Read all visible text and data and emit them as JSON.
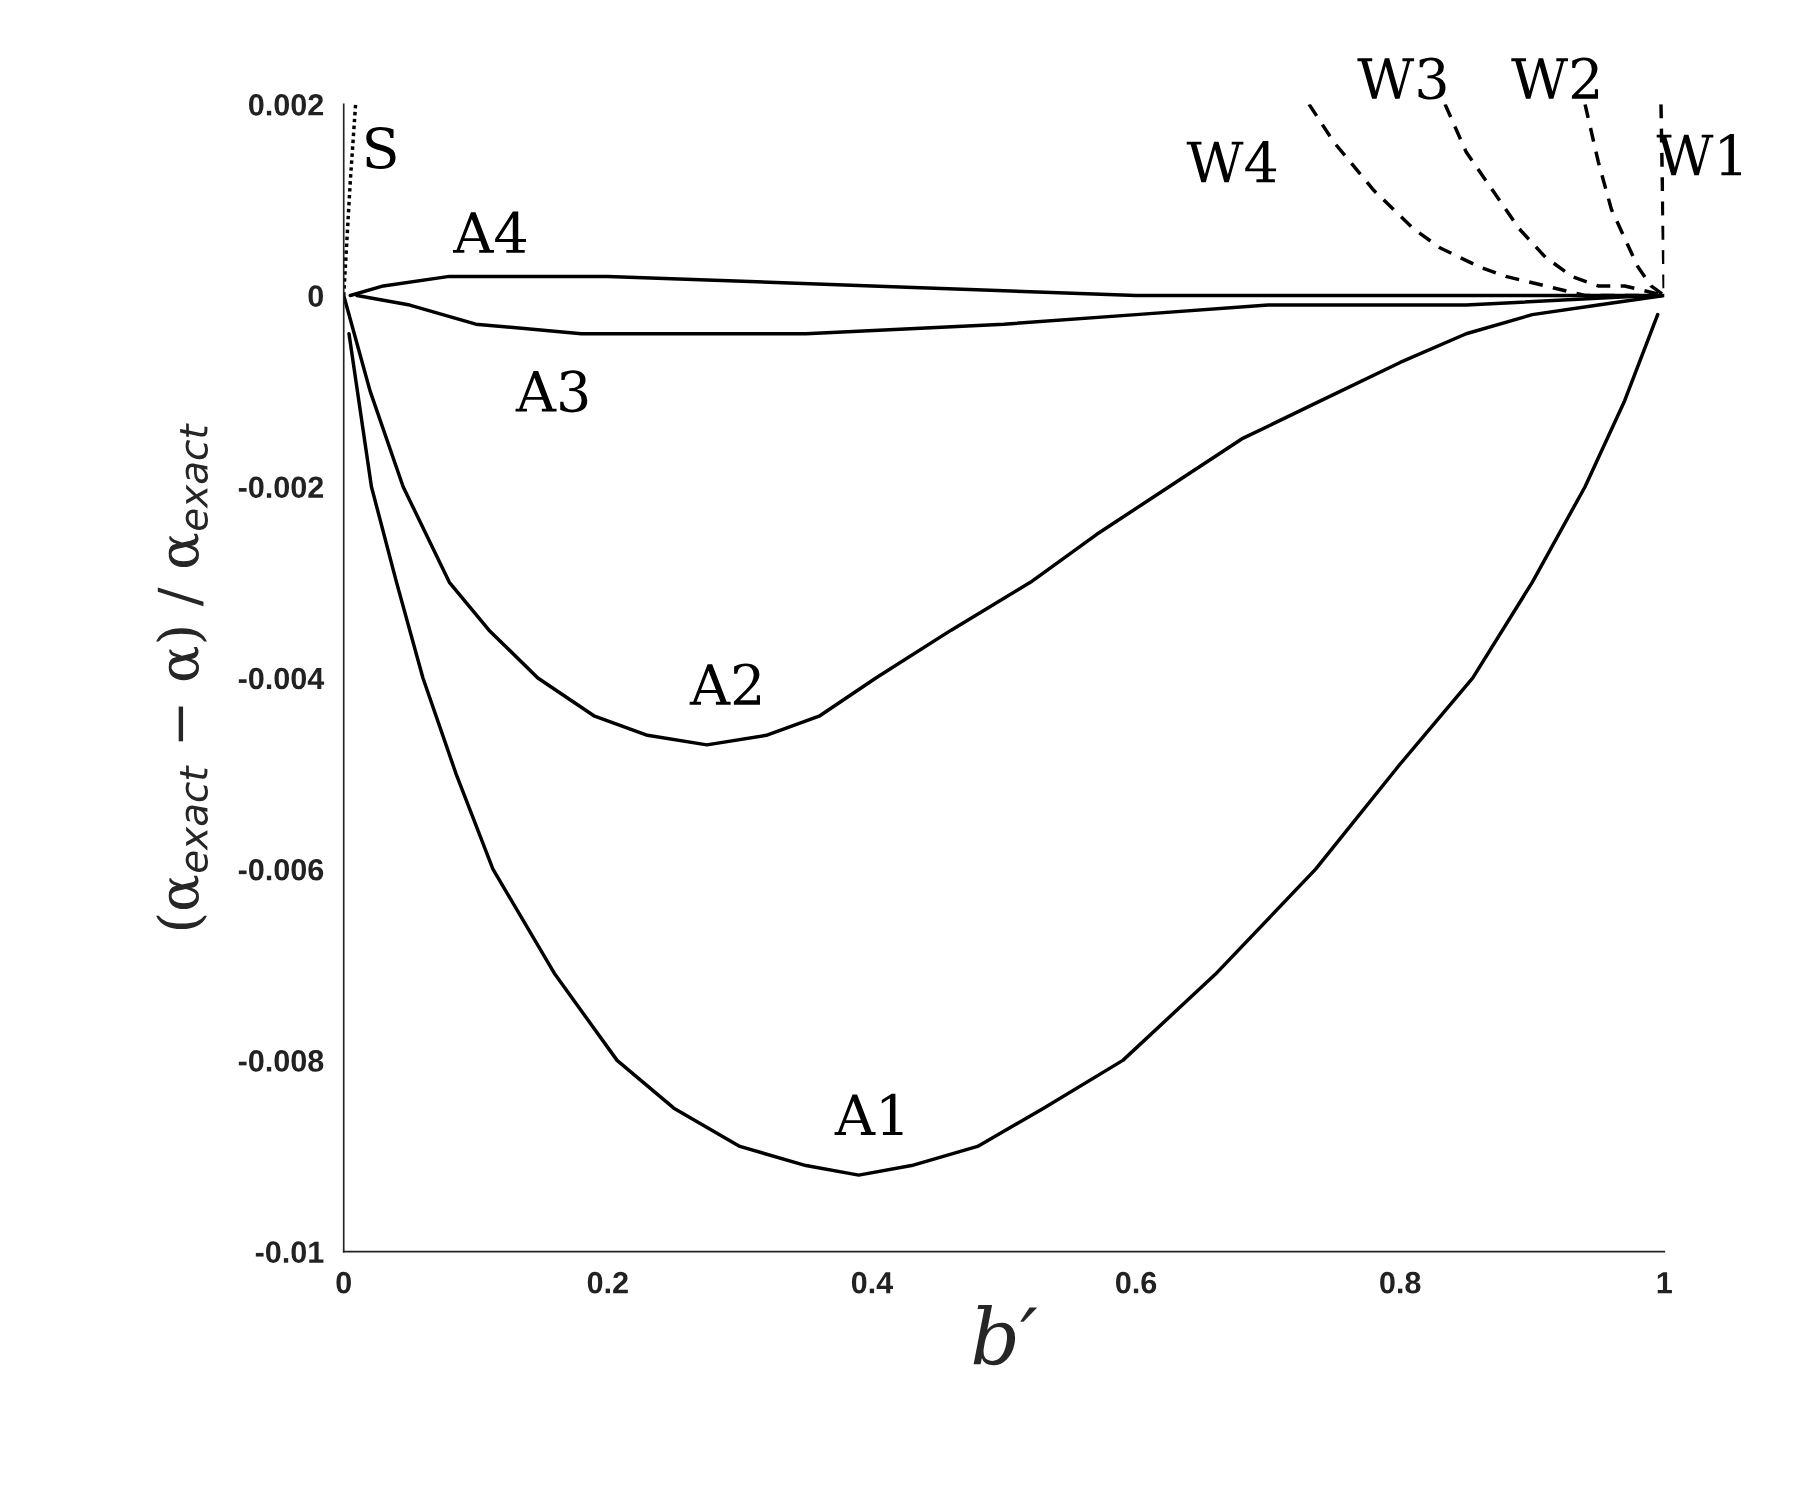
{
  "chart_data": {
    "type": "line",
    "xlabel": "b′",
    "ylabel": "(α$_{exact}$ − α) / α$_{exact}$",
    "xlim": [
      0,
      1
    ],
    "ylim": [
      -0.01,
      0.002
    ],
    "xticks": [
      0,
      0.2,
      0.4,
      0.6,
      0.8,
      1
    ],
    "yticks": [
      -0.01,
      -0.008,
      -0.006,
      -0.004,
      -0.002,
      0,
      0.002
    ],
    "grid": false,
    "legend": false,
    "marker": "none",
    "series": [
      {
        "name": "A1",
        "color": "#000000",
        "line_style": "solid",
        "x": [
          0.004,
          0.021,
          0.04,
          0.06,
          0.085,
          0.113,
          0.16,
          0.207,
          0.25,
          0.3,
          0.35,
          0.39,
          0.43,
          0.48,
          0.53,
          0.59,
          0.66,
          0.736,
          0.8,
          0.855,
          0.9,
          0.94,
          0.97,
          0.995
        ],
        "values": [
          -0.0004,
          -0.002,
          -0.003,
          -0.004,
          -0.005,
          -0.006,
          -0.0071,
          -0.008,
          -0.0085,
          -0.0089,
          -0.0091,
          -0.0092,
          -0.0091,
          -0.0089,
          -0.0085,
          -0.008,
          -0.0071,
          -0.006,
          -0.0049,
          -0.004,
          -0.003,
          -0.002,
          -0.0011,
          -0.0002
        ]
      },
      {
        "name": "A2",
        "color": "#000000",
        "line_style": "solid",
        "x": [
          0,
          0.02,
          0.045,
          0.08,
          0.11,
          0.147,
          0.19,
          0.23,
          0.275,
          0.32,
          0.36,
          0.403,
          0.46,
          0.52,
          0.57,
          0.625,
          0.68,
          0.74,
          0.8,
          0.85,
          0.9,
          0.95,
          1
        ],
        "values": [
          0,
          -0.001,
          -0.002,
          -0.003,
          -0.0035,
          -0.004,
          -0.0044,
          -0.0046,
          -0.0047,
          -0.0046,
          -0.0044,
          -0.004,
          -0.0035,
          -0.003,
          -0.0025,
          -0.002,
          -0.0015,
          -0.0011,
          -0.0007,
          -0.0004,
          -0.0002,
          -0.0001,
          0
        ]
      },
      {
        "name": "A3",
        "color": "#000000",
        "line_style": "solid",
        "x": [
          0.01,
          0.05,
          0.1,
          0.18,
          0.25,
          0.35,
          0.5,
          0.6,
          0.7,
          0.85,
          0.99
        ],
        "values": [
          0,
          -0.0001,
          -0.0003,
          -0.0004,
          -0.0004,
          -0.0004,
          -0.0003,
          -0.0002,
          -0.0001,
          -0.0001,
          0
        ]
      },
      {
        "name": "A4",
        "color": "#000000",
        "line_style": "solid",
        "x": [
          0.005,
          0.03,
          0.08,
          0.2,
          0.4,
          0.6,
          0.8,
          0.995
        ],
        "values": [
          0,
          0.0001,
          0.0002,
          0.0002,
          0.0001,
          0,
          0,
          0
        ]
      },
      {
        "name": "S",
        "color": "#000000",
        "line_style": "dotted",
        "x": [
          0,
          0.005,
          0.009
        ],
        "values": [
          0,
          0.0012,
          0.002
        ]
      },
      {
        "name": "W1",
        "color": "#000000",
        "line_style": "dashed",
        "x": [
          0.9975,
          1
        ],
        "values": [
          0.002,
          0
        ]
      },
      {
        "name": "W2",
        "color": "#000000",
        "line_style": "dashed",
        "x": [
          0.94,
          0.95,
          0.96,
          0.97,
          0.98,
          0.99,
          1
        ],
        "values": [
          0.002,
          0.0014,
          0.0009,
          0.0006,
          0.0003,
          0.0001,
          0
        ]
      },
      {
        "name": "W3",
        "color": "#000000",
        "line_style": "dashed",
        "x": [
          0.834,
          0.85,
          0.87,
          0.89,
          0.91,
          0.93,
          0.95,
          0.97,
          1
        ],
        "values": [
          0.002,
          0.0015,
          0.0011,
          0.0007,
          0.0004,
          0.0002,
          0.0001,
          0.0001,
          0
        ]
      },
      {
        "name": "W4",
        "color": "#000000",
        "line_style": "dashed",
        "x": [
          0.731,
          0.75,
          0.78,
          0.81,
          0.83,
          0.86,
          0.88,
          0.91,
          0.94,
          1
        ],
        "values": [
          0.002,
          0.0016,
          0.0011,
          0.0007,
          0.0005,
          0.0003,
          0.0002,
          0.0001,
          0,
          0
        ]
      }
    ]
  }
}
